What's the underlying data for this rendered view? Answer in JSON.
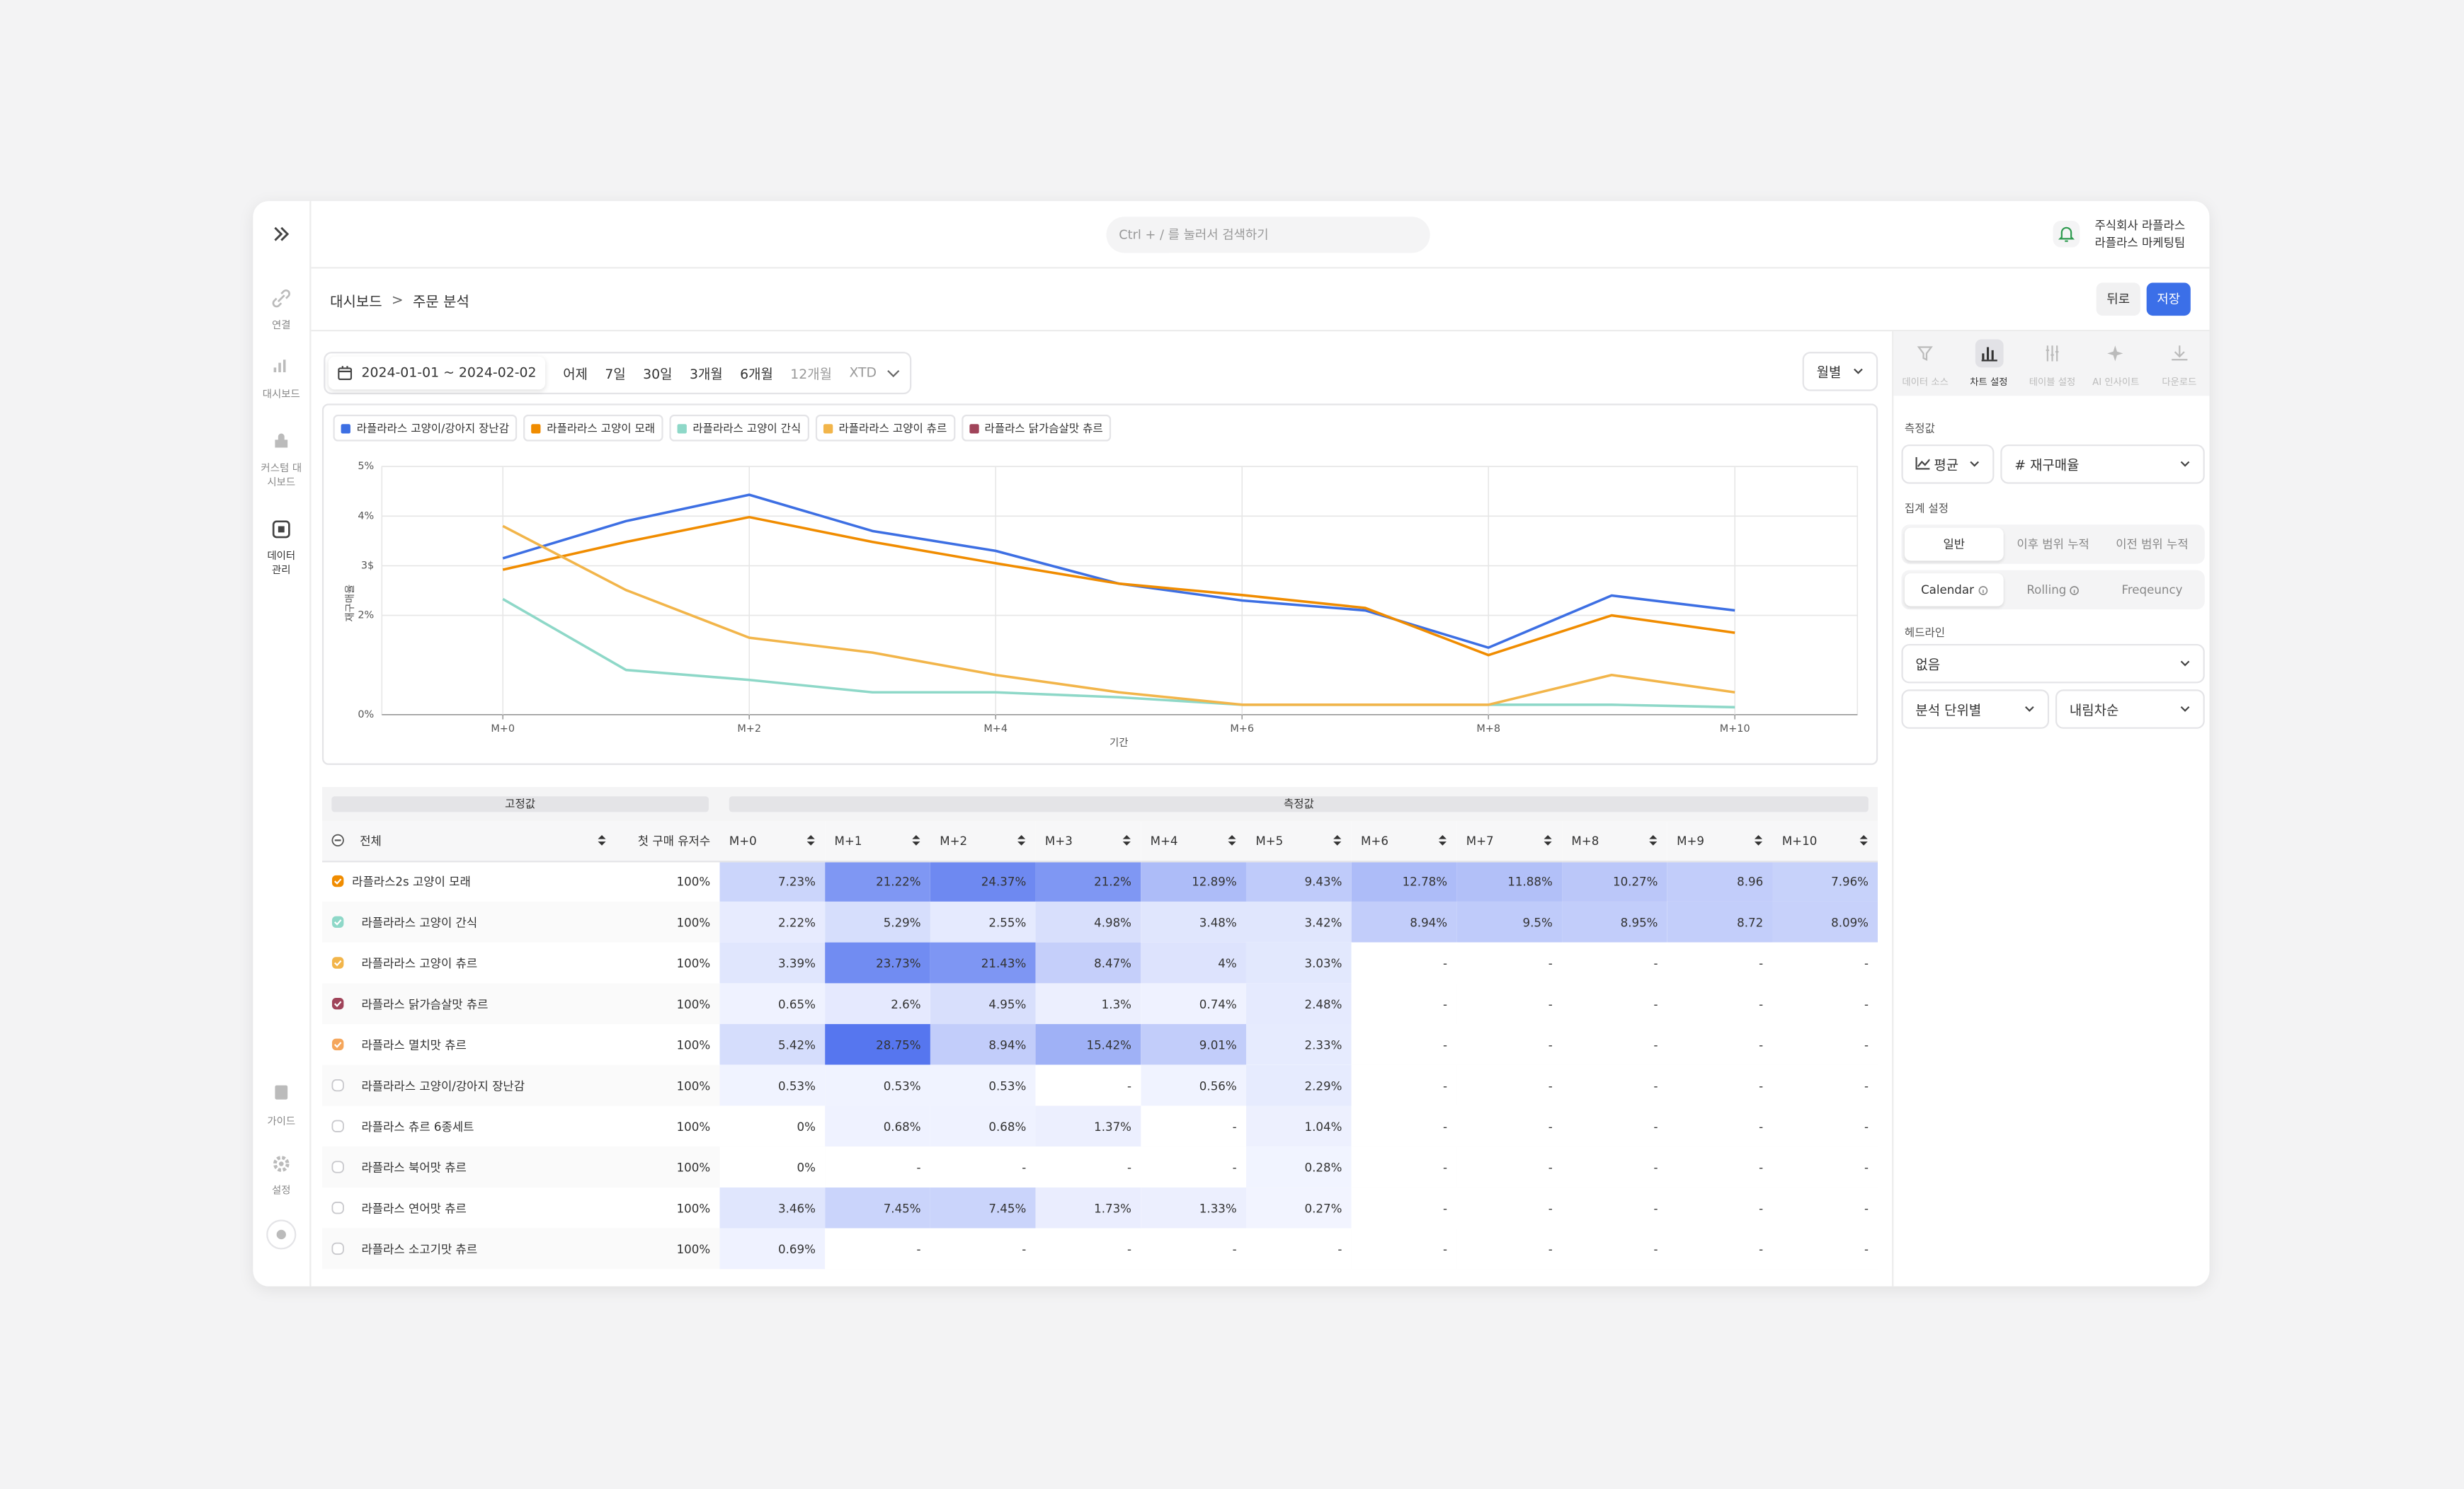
{
  "sidebar": {
    "items": [
      "연결",
      "대시보드",
      "커스텀 대시보드",
      "데이터 관리"
    ],
    "bottom": [
      "가이드",
      "설정"
    ]
  },
  "header": {
    "search": "Ctrl + / 를 눌러서 검색하기",
    "company": "주식회사 라플라스",
    "team": "라플라스 마케팅팀"
  },
  "breadcrumb": [
    "대시보드",
    "주문 분석"
  ],
  "actions": {
    "back": "뒤로",
    "save": "저장"
  },
  "filters": {
    "date_range": "2024-01-01 ~ 2024-02-02",
    "presets": [
      "어제",
      "7일",
      "30일",
      "3개월",
      "6개월",
      "12개월",
      "XTD"
    ],
    "granularity": "월별"
  },
  "chart_data": {
    "type": "line",
    "x_label": "기간",
    "y_label": "재구매율",
    "categories": [
      "M+0",
      null,
      "M+2",
      null,
      "M+4",
      null,
      "M+6",
      null,
      "M+8",
      null,
      "M+10"
    ],
    "series": [
      {
        "name": "라플라라스 고양이/강아지 장난감",
        "color": "#3d6fe3",
        "values": [
          3.15,
          3.9,
          4.43,
          3.7,
          3.3,
          2.64,
          2.3,
          2.1,
          1.35,
          2.4,
          2.1
        ]
      },
      {
        "name": "라플라라스 고양이 모래",
        "color": "#f08c00",
        "values": [
          2.92,
          3.48,
          3.98,
          3.48,
          3.05,
          2.64,
          2.41,
          2.15,
          1.2,
          2.0,
          1.65
        ]
      },
      {
        "name": "라플라라스 고양이 간식",
        "color": "#8ed8c8",
        "values": [
          2.33,
          0.9,
          0.7,
          0.45,
          0.45,
          0.35,
          0.2,
          0.2,
          0.2,
          0.2,
          0.15
        ]
      },
      {
        "name": "라플라라스 고양이 츄르",
        "color": "#f2b54a",
        "values": [
          3.8,
          2.51,
          1.55,
          1.25,
          0.8,
          0.45,
          0.2,
          0.2,
          0.2,
          0.8,
          0.45
        ]
      },
      {
        "name": "라플라스 닭가슴살맛 츄르",
        "color": "#a0445a",
        "values": [
          null,
          null,
          null,
          null,
          null,
          null,
          null,
          null,
          null,
          null,
          null
        ]
      }
    ],
    "ylim": [
      0,
      5
    ],
    "yticks": [
      {
        "value": 0,
        "label": "0%"
      },
      {
        "value": 2,
        "label": "2%"
      },
      {
        "value": 3,
        "label": "3$"
      },
      {
        "value": 4,
        "label": "4%"
      },
      {
        "value": 5,
        "label": "5%"
      }
    ],
    "grid": true
  },
  "table": {
    "groups": [
      "고정값",
      "측정값"
    ],
    "columns": [
      "전체",
      "첫 구매 유저수",
      "M+0",
      "M+1",
      "M+2",
      "M+3",
      "M+4",
      "M+5",
      "M+6",
      "M+7",
      "M+8",
      "M+9",
      "M+10"
    ],
    "rows": [
      {
        "marker": "#f08c00",
        "name": "라플라스2s 고양이 모래",
        "cells": [
          "100%",
          "7.23%",
          "21.22%",
          "24.37%",
          "21.2%",
          "12.89%",
          "9.43%",
          "12.78%",
          "11.88%",
          "10.27%",
          "8.96",
          "7.96%"
        ]
      },
      {
        "marker": "#8ed8c8",
        "name": "라플라라스 고양이 간식",
        "cells": [
          "100%",
          "2.22%",
          "5.29%",
          "2.55%",
          "4.98%",
          "3.48%",
          "3.42%",
          "8.94%",
          "9.5%",
          "8.95%",
          "8.72",
          "8.09%"
        ]
      },
      {
        "marker": "#f2b54a",
        "name": "라플라라스 고양이 츄르",
        "cells": [
          "100%",
          "3.39%",
          "23.73%",
          "21.43%",
          "8.47%",
          "4%",
          "3.03%",
          "-",
          "-",
          "-",
          "-",
          "-"
        ]
      },
      {
        "marker": "#a0445a",
        "name": "라플라스 닭가슴살맛 츄르",
        "cells": [
          "100%",
          "0.65%",
          "2.6%",
          "4.95%",
          "1.3%",
          "0.74%",
          "2.48%",
          "-",
          "-",
          "-",
          "-",
          "-"
        ]
      },
      {
        "marker": "#f5a65b",
        "name": "라플라스 멸치맛 츄르",
        "cells": [
          "100%",
          "5.42%",
          "28.75%",
          "8.94%",
          "15.42%",
          "9.01%",
          "2.33%",
          "-",
          "-",
          "-",
          "-",
          "-"
        ]
      },
      {
        "marker": null,
        "name": "라플라라스 고양이/강아지 장난감",
        "cells": [
          "100%",
          "0.53%",
          "0.53%",
          "0.53%",
          "-",
          "0.56%",
          "2.29%",
          "-",
          "-",
          "-",
          "-",
          "-"
        ]
      },
      {
        "marker": null,
        "name": "라플라스 츄르 6종세트",
        "cells": [
          "100%",
          "0%",
          "0.68%",
          "0.68%",
          "1.37%",
          "-",
          "1.04%",
          "-",
          "-",
          "-",
          "-",
          "-"
        ]
      },
      {
        "marker": null,
        "name": "라플라스 북어맛 츄르",
        "cells": [
          "100%",
          "0%",
          "-",
          "-",
          "-",
          "-",
          "0.28%",
          "-",
          "-",
          "-",
          "-",
          "-"
        ]
      },
      {
        "marker": null,
        "name": "라플라스 연어맛 츄르",
        "cells": [
          "100%",
          "3.46%",
          "7.45%",
          "7.45%",
          "1.73%",
          "1.33%",
          "0.27%",
          "-",
          "-",
          "-",
          "-",
          "-"
        ]
      },
      {
        "marker": null,
        "name": "라플라스 소고기맛 츄르",
        "cells": [
          "100%",
          "0.69%",
          "-",
          "-",
          "-",
          "-",
          "-",
          "-",
          "-",
          "-",
          "-",
          "-"
        ]
      }
    ]
  },
  "panel": {
    "tabs": [
      "데이터 소스",
      "차트 설정",
      "테이블 설정",
      "AI 인사이트",
      "다운로드"
    ],
    "measure_label": "측정값",
    "aggregation": "평균",
    "metric": "재구매율",
    "agg_label": "집계 설정",
    "agg_modes": [
      "일반",
      "이후 범위 누적",
      "이전 범위 누적"
    ],
    "windows": [
      "Calendar",
      "Rolling",
      "Freqeuncy"
    ],
    "headline_label": "헤드라인",
    "headline": "없음",
    "unit": "분석 단위별",
    "order": "내림차순"
  }
}
